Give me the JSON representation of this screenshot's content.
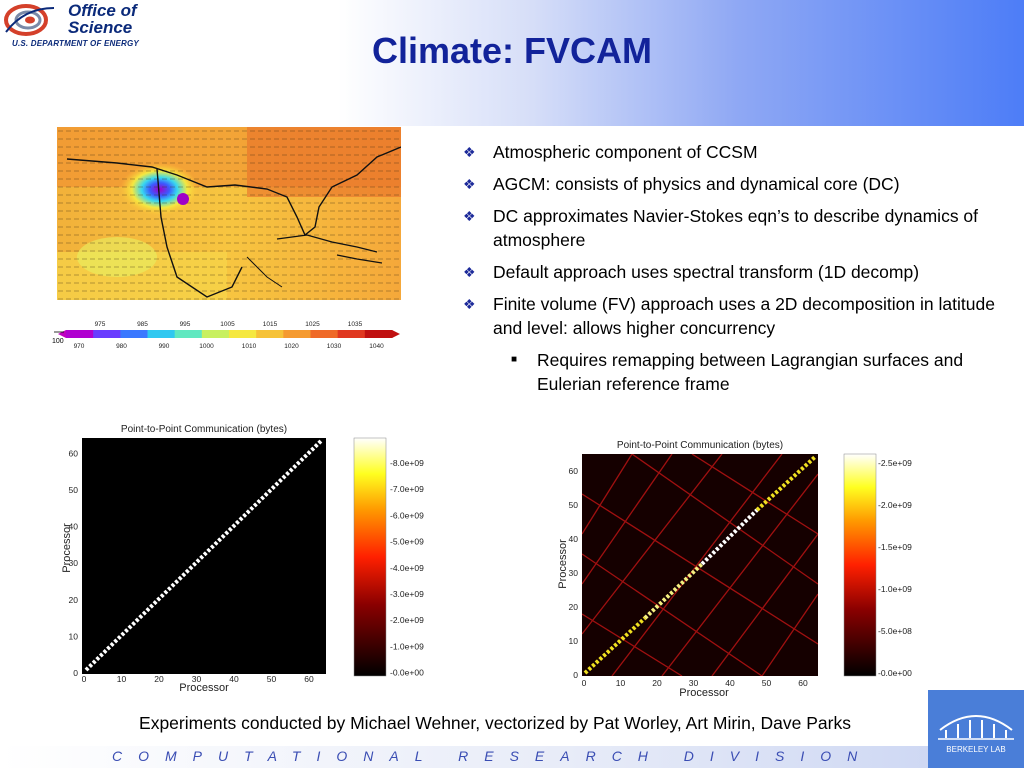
{
  "header": {
    "title": "Climate: FVCAM",
    "logo": {
      "line1": "Office of",
      "line2": "Science",
      "subtitle": "U.S. DEPARTMENT OF ENERGY"
    }
  },
  "map_figure": {
    "colorbar_top_labels": [
      "975",
      "985",
      "995",
      "1005",
      "1015",
      "1025",
      "1035"
    ],
    "colorbar_bottom_labels": [
      "970",
      "980",
      "990",
      "1000",
      "1010",
      "1020",
      "1030",
      "1040"
    ],
    "arrow_scale_label": "100"
  },
  "bullets": [
    "Atmospheric component of CCSM",
    "AGCM: consists of physics and dynamical core (DC)",
    "DC approximates Navier-Stokes eqn’s to describe dynamics of atmosphere",
    "Default approach uses spectral transform (1D decomp)",
    "Finite volume (FV) approach uses a 2D decomposition in latitude and level: allows higher concurrency"
  ],
  "sub_bullets": [
    "Requires remapping between Lagrangian surfaces and Eulerian reference frame"
  ],
  "plot_left": {
    "title": "Point-to-Point Communication (bytes)",
    "xlabel": "Processor",
    "ylabel": "Processor",
    "x_ticks": [
      "0",
      "10",
      "20",
      "30",
      "40",
      "50",
      "60"
    ],
    "y_ticks": [
      "0",
      "10",
      "20",
      "30",
      "40",
      "50",
      "60"
    ],
    "colorbar_ticks": [
      "8.0e+09",
      "7.0e+09",
      "6.0e+09",
      "5.0e+09",
      "4.0e+09",
      "3.0e+09",
      "2.0e+09",
      "1.0e+09",
      "0.0e+00"
    ]
  },
  "plot_right": {
    "title": "Point-to-Point Communication (bytes)",
    "xlabel": "Processor",
    "ylabel": "Processor",
    "x_ticks": [
      "0",
      "10",
      "20",
      "30",
      "40",
      "50",
      "60"
    ],
    "y_ticks": [
      "0",
      "10",
      "20",
      "30",
      "40",
      "50",
      "60"
    ],
    "colorbar_ticks": [
      "2.5e+09",
      "2.0e+09",
      "1.5e+09",
      "1.0e+09",
      "5.0e+08",
      "0.0e+00"
    ]
  },
  "caption": "Experiments conducted by Michael Wehner, vectorized by Pat Worley, Art Mirin, Dave Parks",
  "footer": {
    "text": "COMPUTATIONAL RESEARCH DIVISION",
    "badge": "BERKELEY LAB"
  }
}
